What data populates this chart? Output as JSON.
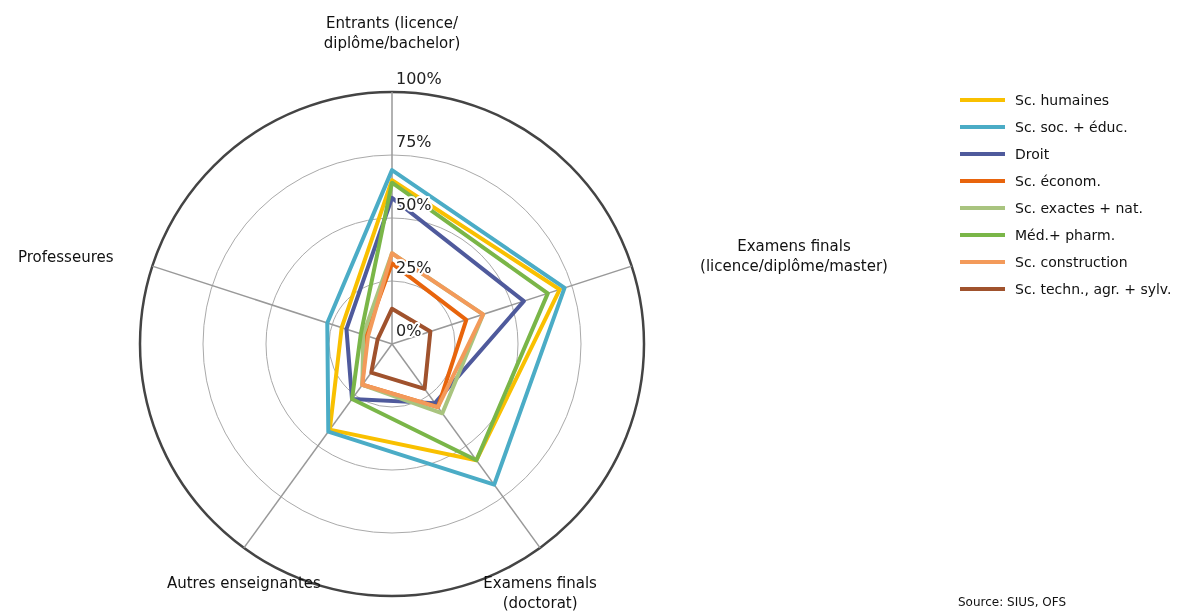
{
  "chart_data": {
    "type": "radar",
    "categories": [
      "Entrants (licence/\ndiplôme/bachelor)",
      "Examens finals\n(licence/diplôme/master)",
      "Examens finals\n(doctorat)",
      "Autres enseignantes",
      "Professeures"
    ],
    "ylim": [
      0,
      100
    ],
    "yticks": [
      {
        "value": 0,
        "label": "0%"
      },
      {
        "value": 25,
        "label": "25%"
      },
      {
        "value": 50,
        "label": "50%"
      },
      {
        "value": 75,
        "label": "75%"
      },
      {
        "value": 100,
        "label": "100%"
      }
    ],
    "grid": true,
    "legend": "right",
    "line_style": "solid",
    "marker": "none",
    "series": [
      {
        "name": "Sc. humaines",
        "color": "#f9c000",
        "values": [
          65,
          70,
          57,
          42,
          21
        ]
      },
      {
        "name": "Sc. soc. + éduc.",
        "color": "#4bacc6",
        "values": [
          69,
          72,
          69,
          43,
          27
        ]
      },
      {
        "name": "Droit",
        "color": "#4f5a9c",
        "values": [
          58,
          55,
          29,
          27,
          19
        ]
      },
      {
        "name": "Sc. économ.",
        "color": "#e8640c",
        "values": [
          32,
          31,
          31,
          20,
          11
        ]
      },
      {
        "name": "Sc. exactes + nat.",
        "color": "#a9c47f",
        "values": [
          36,
          38,
          34,
          20,
          12
        ]
      },
      {
        "name": "Méd.+ pharm.",
        "color": "#7ab648",
        "values": [
          64,
          65,
          57,
          27,
          13
        ]
      },
      {
        "name": "Sc. construction",
        "color": "#f39a5a",
        "values": [
          36,
          38,
          31,
          20,
          10
        ]
      },
      {
        "name": "Sc. techn., agr. + sylv.",
        "color": "#a0522d",
        "values": [
          14,
          16,
          22,
          14,
          6
        ]
      }
    ],
    "annotations": [
      "Source: SIUS, OFS"
    ]
  }
}
